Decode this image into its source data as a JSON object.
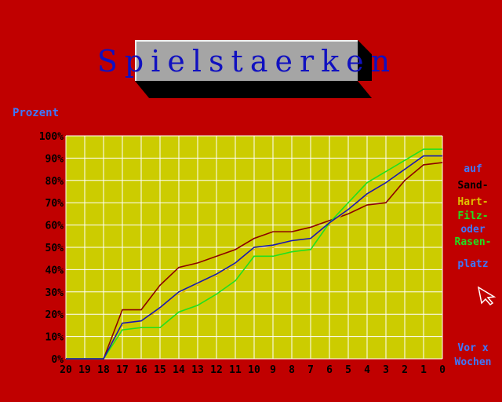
{
  "title": "Spielstaerken",
  "colors": {
    "background": "#c00000",
    "plot_bg": "#cccc00",
    "grid": "#ffffff",
    "blue_text": "#3c78ff",
    "sand": "#8b0000",
    "hart": "#e0c000",
    "filz": "#20e020",
    "rasen": "#1818b0"
  },
  "side_labels": {
    "auf": "auf",
    "sand": "Sand-",
    "hart": "Hart-",
    "filz": "Filz-",
    "oder": "oder",
    "rasen": "Rasen-",
    "platz": "platz",
    "vor": "Vor x",
    "wochen": "Wochen"
  },
  "chart_data": {
    "type": "line",
    "ylabel": "Prozent",
    "xlabel": "Vor x Wochen",
    "x": [
      20,
      19,
      18,
      17,
      16,
      15,
      14,
      13,
      12,
      11,
      10,
      9,
      8,
      7,
      6,
      5,
      4,
      3,
      2,
      1,
      0
    ],
    "ylim": [
      0,
      100
    ],
    "yticks": [
      "0%",
      "10%",
      "20%",
      "30%",
      "40%",
      "50%",
      "60%",
      "70%",
      "80%",
      "90%",
      "100%"
    ],
    "grid": true,
    "series": [
      {
        "name": "Sand-",
        "color": "#8b0000",
        "values": [
          0,
          0,
          0,
          22,
          22,
          33,
          41,
          43,
          46,
          49,
          54,
          57,
          57,
          59,
          62,
          65,
          69,
          70,
          80,
          87,
          88
        ]
      },
      {
        "name": "Hart-",
        "color": "#e0c000",
        "values": [
          0,
          0,
          0,
          15,
          17,
          22,
          29,
          33,
          37,
          42,
          49,
          50,
          53,
          54,
          60,
          67,
          73,
          79,
          85,
          90,
          90
        ]
      },
      {
        "name": "Filz-",
        "color": "#20e020",
        "values": [
          0,
          0,
          0,
          13,
          14,
          14,
          21,
          24,
          29,
          35,
          46,
          46,
          48,
          49,
          61,
          70,
          79,
          84,
          89,
          94,
          94
        ]
      },
      {
        "name": "Rasen-",
        "color": "#1818b0",
        "values": [
          0,
          0,
          0,
          16,
          17,
          23,
          30,
          34,
          38,
          43,
          50,
          51,
          53,
          54,
          61,
          67,
          74,
          79,
          85,
          91,
          91
        ]
      }
    ]
  }
}
